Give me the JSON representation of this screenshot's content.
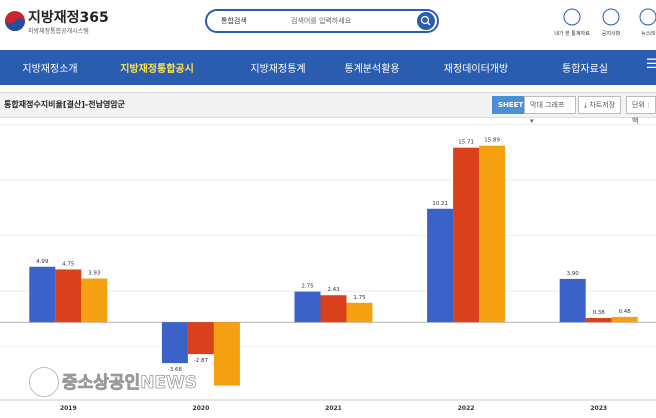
{
  "header": {
    "logo_title": "지방재정365",
    "logo_subtitle": "지방재정통합공개시스템",
    "search_scope": "통합검색",
    "search_placeholder": "검색어를 입력하세요",
    "utilities": [
      "내가 본 통계자료",
      "공지사항",
      "뉴스레"
    ]
  },
  "nav": {
    "items": [
      "지방재정소개",
      "지방재정통합공시",
      "지방재정통계",
      "통계분석활용",
      "재정데이터개방",
      "통합자료실"
    ],
    "active": 1
  },
  "toolbar": {
    "title": "통합재정수지비율[결산]-전남영암군",
    "sheet": "SHEET",
    "chart_type": "막대 그래프",
    "save": "차트저장",
    "unit": "단위 : 백"
  },
  "chart_data": {
    "type": "bar",
    "categories": [
      "2019",
      "2020",
      "2021",
      "2022",
      "2023"
    ],
    "series": [
      {
        "color": "#3a62c8",
        "values": [
          4.99,
          -3.68,
          2.75,
          10.21,
          3.9
        ],
        "value_labels": [
          "4.99",
          "-3.68",
          "2.75",
          "10.21",
          "3.90"
        ]
      },
      {
        "color": "#d9401c",
        "values": [
          4.75,
          -2.87,
          2.43,
          15.71,
          0.38
        ],
        "value_labels": [
          "4.75",
          "-2.87",
          "2.43",
          "15.71",
          "0.38"
        ]
      },
      {
        "color": "#f5a011",
        "values": [
          3.93,
          -5.7,
          1.75,
          15.89,
          0.48
        ],
        "value_labels": [
          "3.93",
          null,
          "1.75",
          "15.89",
          "0.48"
        ]
      }
    ],
    "ylim": [
      -7,
      18.2
    ],
    "yticks": [
      -2.2,
      2.8,
      7.8,
      12.8,
      17.8
    ],
    "grid": true,
    "watermark": "중소상공인NEWS"
  }
}
